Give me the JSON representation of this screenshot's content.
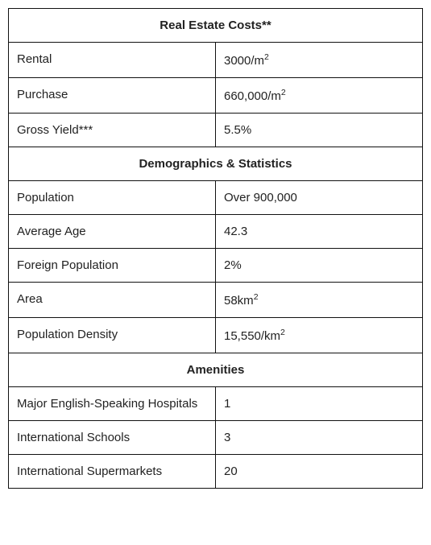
{
  "table": {
    "border_color": "#111111",
    "background_color": "#ffffff",
    "font_family": "Arial",
    "font_size_pt": 11,
    "section_header_font_weight": "bold",
    "columns": [
      "label",
      "value"
    ],
    "column_widths_pct": [
      50,
      50
    ],
    "sections": [
      {
        "header": "Real Estate Costs**",
        "rows": [
          {
            "label": "Rental",
            "value_html": "3000/m<sup>2</sup>"
          },
          {
            "label": "Purchase",
            "value_html": "660,000/m<sup>2</sup>"
          },
          {
            "label": "Gross Yield***",
            "value_html": "5.5%"
          }
        ]
      },
      {
        "header": "Demographics & Statistics",
        "rows": [
          {
            "label": "Population",
            "value_html": "Over 900,000"
          },
          {
            "label": "Average Age",
            "value_html": "42.3"
          },
          {
            "label": "Foreign Population",
            "value_html": "2%"
          },
          {
            "label": "Area",
            "value_html": "58km<sup>2</sup>"
          },
          {
            "label": " Population Density",
            "value_html": "15,550/km<sup>2</sup>"
          }
        ]
      },
      {
        "header": "Amenities",
        "rows": [
          {
            "label": "Major English-Speaking Hospitals",
            "value_html": "1"
          },
          {
            "label": "International Schools",
            "value_html": "3"
          },
          {
            "label": "International Supermarkets",
            "value_html": "20"
          }
        ]
      }
    ]
  }
}
